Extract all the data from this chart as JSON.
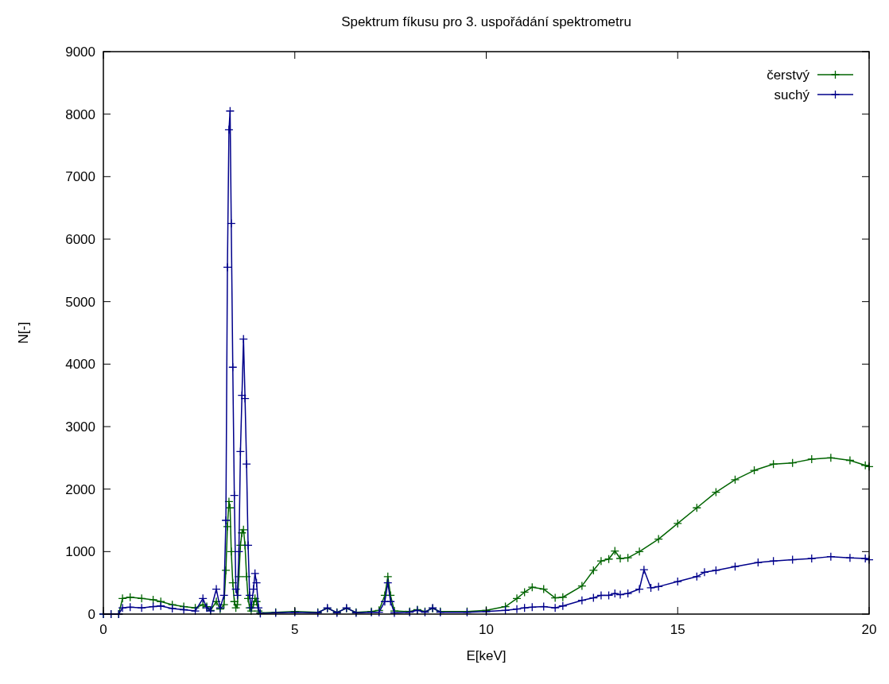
{
  "chart_data": {
    "type": "line",
    "title": "Spektrum fíkusu pro 3. uspořádání spektrometru",
    "xlabel": "E[keV]",
    "ylabel": "N[-]",
    "xlim": [
      0,
      20
    ],
    "xticks": [
      0,
      5,
      10,
      15,
      20
    ],
    "ylim": [
      0,
      9000
    ],
    "yticks": [
      0,
      1000,
      2000,
      3000,
      4000,
      5000,
      6000,
      7000,
      8000,
      9000
    ],
    "grid": false,
    "legend": "top right",
    "marker": "cross",
    "line_style": "solid",
    "series": [
      {
        "name": "čerstvý",
        "color": "#006400",
        "x": [
          0,
          0.2,
          0.4,
          0.5,
          0.7,
          1.0,
          1.3,
          1.5,
          1.8,
          2.1,
          2.4,
          2.6,
          2.7,
          2.8,
          2.95,
          3.05,
          3.15,
          3.2,
          3.24,
          3.28,
          3.31,
          3.34,
          3.38,
          3.42,
          3.46,
          3.5,
          3.54,
          3.58,
          3.62,
          3.66,
          3.7,
          3.74,
          3.78,
          3.82,
          3.86,
          3.92,
          3.96,
          4.0,
          4.05,
          4.1,
          4.5,
          5.0,
          5.6,
          5.85,
          6.1,
          6.35,
          6.6,
          7.0,
          7.2,
          7.35,
          7.43,
          7.5,
          7.6,
          8.0,
          8.2,
          8.4,
          8.6,
          8.8,
          9.5,
          10.0,
          10.5,
          10.8,
          11.0,
          11.2,
          11.5,
          11.8,
          12.0,
          12.5,
          12.8,
          13.0,
          13.2,
          13.36,
          13.5,
          13.7,
          14.0,
          14.5,
          15.0,
          15.5,
          16.0,
          16.5,
          17.0,
          17.5,
          18.0,
          18.5,
          19.0,
          19.5,
          19.9,
          20.0
        ],
        "values": [
          0,
          0,
          0,
          250,
          270,
          250,
          230,
          200,
          150,
          120,
          100,
          150,
          120,
          60,
          200,
          80,
          150,
          700,
          1400,
          1800,
          1700,
          1000,
          500,
          200,
          100,
          150,
          600,
          1100,
          1300,
          1350,
          1100,
          600,
          250,
          100,
          50,
          150,
          250,
          200,
          50,
          20,
          30,
          40,
          30,
          90,
          30,
          90,
          30,
          40,
          60,
          300,
          600,
          300,
          50,
          40,
          70,
          40,
          90,
          40,
          40,
          60,
          120,
          250,
          350,
          430,
          400,
          260,
          270,
          450,
          700,
          850,
          880,
          1010,
          890,
          900,
          1000,
          1200,
          1450,
          1700,
          1950,
          2150,
          2300,
          2400,
          2420,
          2480,
          2500,
          2460,
          2380,
          2360
        ]
      },
      {
        "name": "suchý",
        "color": "#00008b",
        "x": [
          0,
          0.2,
          0.4,
          0.5,
          0.7,
          1.0,
          1.3,
          1.5,
          1.8,
          2.1,
          2.4,
          2.6,
          2.7,
          2.8,
          2.95,
          3.05,
          3.15,
          3.2,
          3.24,
          3.28,
          3.31,
          3.34,
          3.38,
          3.42,
          3.46,
          3.5,
          3.54,
          3.58,
          3.62,
          3.66,
          3.7,
          3.74,
          3.78,
          3.82,
          3.86,
          3.92,
          3.96,
          4.0,
          4.05,
          4.1,
          4.5,
          5.0,
          5.6,
          5.85,
          6.1,
          6.35,
          6.6,
          7.0,
          7.2,
          7.35,
          7.43,
          7.5,
          7.6,
          8.0,
          8.2,
          8.4,
          8.6,
          8.8,
          9.5,
          10.0,
          10.5,
          10.8,
          11.0,
          11.2,
          11.5,
          11.8,
          12.0,
          12.5,
          12.8,
          13.0,
          13.2,
          13.36,
          13.5,
          13.7,
          14.0,
          14.12,
          14.3,
          14.5,
          15.0,
          15.5,
          15.7,
          16.0,
          16.5,
          17.1,
          17.5,
          18.0,
          18.5,
          19.0,
          19.5,
          19.9,
          20.0
        ],
        "values": [
          0,
          0,
          0,
          100,
          110,
          100,
          120,
          130,
          90,
          70,
          50,
          250,
          100,
          50,
          400,
          100,
          300,
          1500,
          5550,
          7750,
          8050,
          6250,
          3950,
          1900,
          400,
          300,
          1000,
          2600,
          3500,
          4400,
          3450,
          2400,
          1100,
          300,
          100,
          400,
          650,
          500,
          100,
          10,
          20,
          30,
          20,
          100,
          20,
          100,
          20,
          30,
          30,
          200,
          500,
          200,
          20,
          30,
          60,
          30,
          100,
          30,
          30,
          40,
          60,
          80,
          100,
          110,
          120,
          100,
          130,
          220,
          260,
          300,
          300,
          330,
          310,
          330,
          400,
          710,
          420,
          440,
          520,
          600,
          670,
          700,
          760,
          825,
          850,
          870,
          890,
          920,
          900,
          890,
          870
        ]
      }
    ]
  }
}
